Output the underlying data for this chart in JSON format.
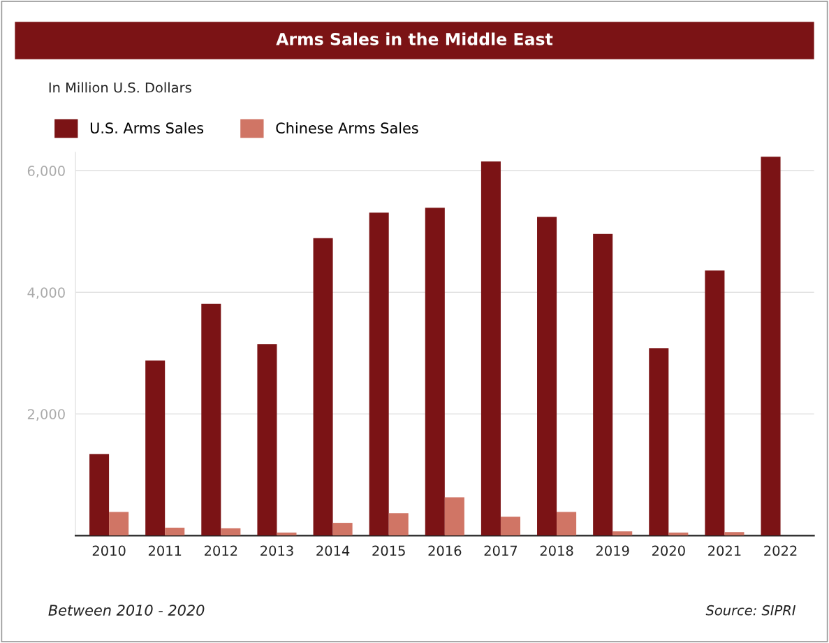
{
  "chart_data": {
    "type": "bar",
    "title": "Arms Sales in the Middle East",
    "ylabel": "In Million U.S. Dollars",
    "categories": [
      "2010",
      "2011",
      "2012",
      "2013",
      "2014",
      "2015",
      "2016",
      "2017",
      "2018",
      "2019",
      "2020",
      "2021",
      "2022"
    ],
    "series": [
      {
        "name": "U.S. Arms Sales",
        "color": "#7b1315",
        "values": [
          1340,
          2880,
          3810,
          3150,
          4890,
          5310,
          5390,
          6150,
          5240,
          4960,
          3080,
          4360,
          6230
        ]
      },
      {
        "name": "Chinese Arms Sales",
        "color": "#d07565",
        "values": [
          390,
          130,
          120,
          50,
          210,
          370,
          630,
          310,
          390,
          70,
          50,
          60,
          null
        ]
      }
    ],
    "ylim": [
      0,
      6300
    ],
    "yticks": [
      {
        "value": 2000,
        "label": "2,000"
      },
      {
        "value": 4000,
        "label": "4,000"
      },
      {
        "value": 6000,
        "label": "6,000"
      }
    ],
    "grid": "y",
    "legend": "top left",
    "annotations": [
      "Between 2010 - 2020",
      "Source: SIPRI"
    ]
  }
}
